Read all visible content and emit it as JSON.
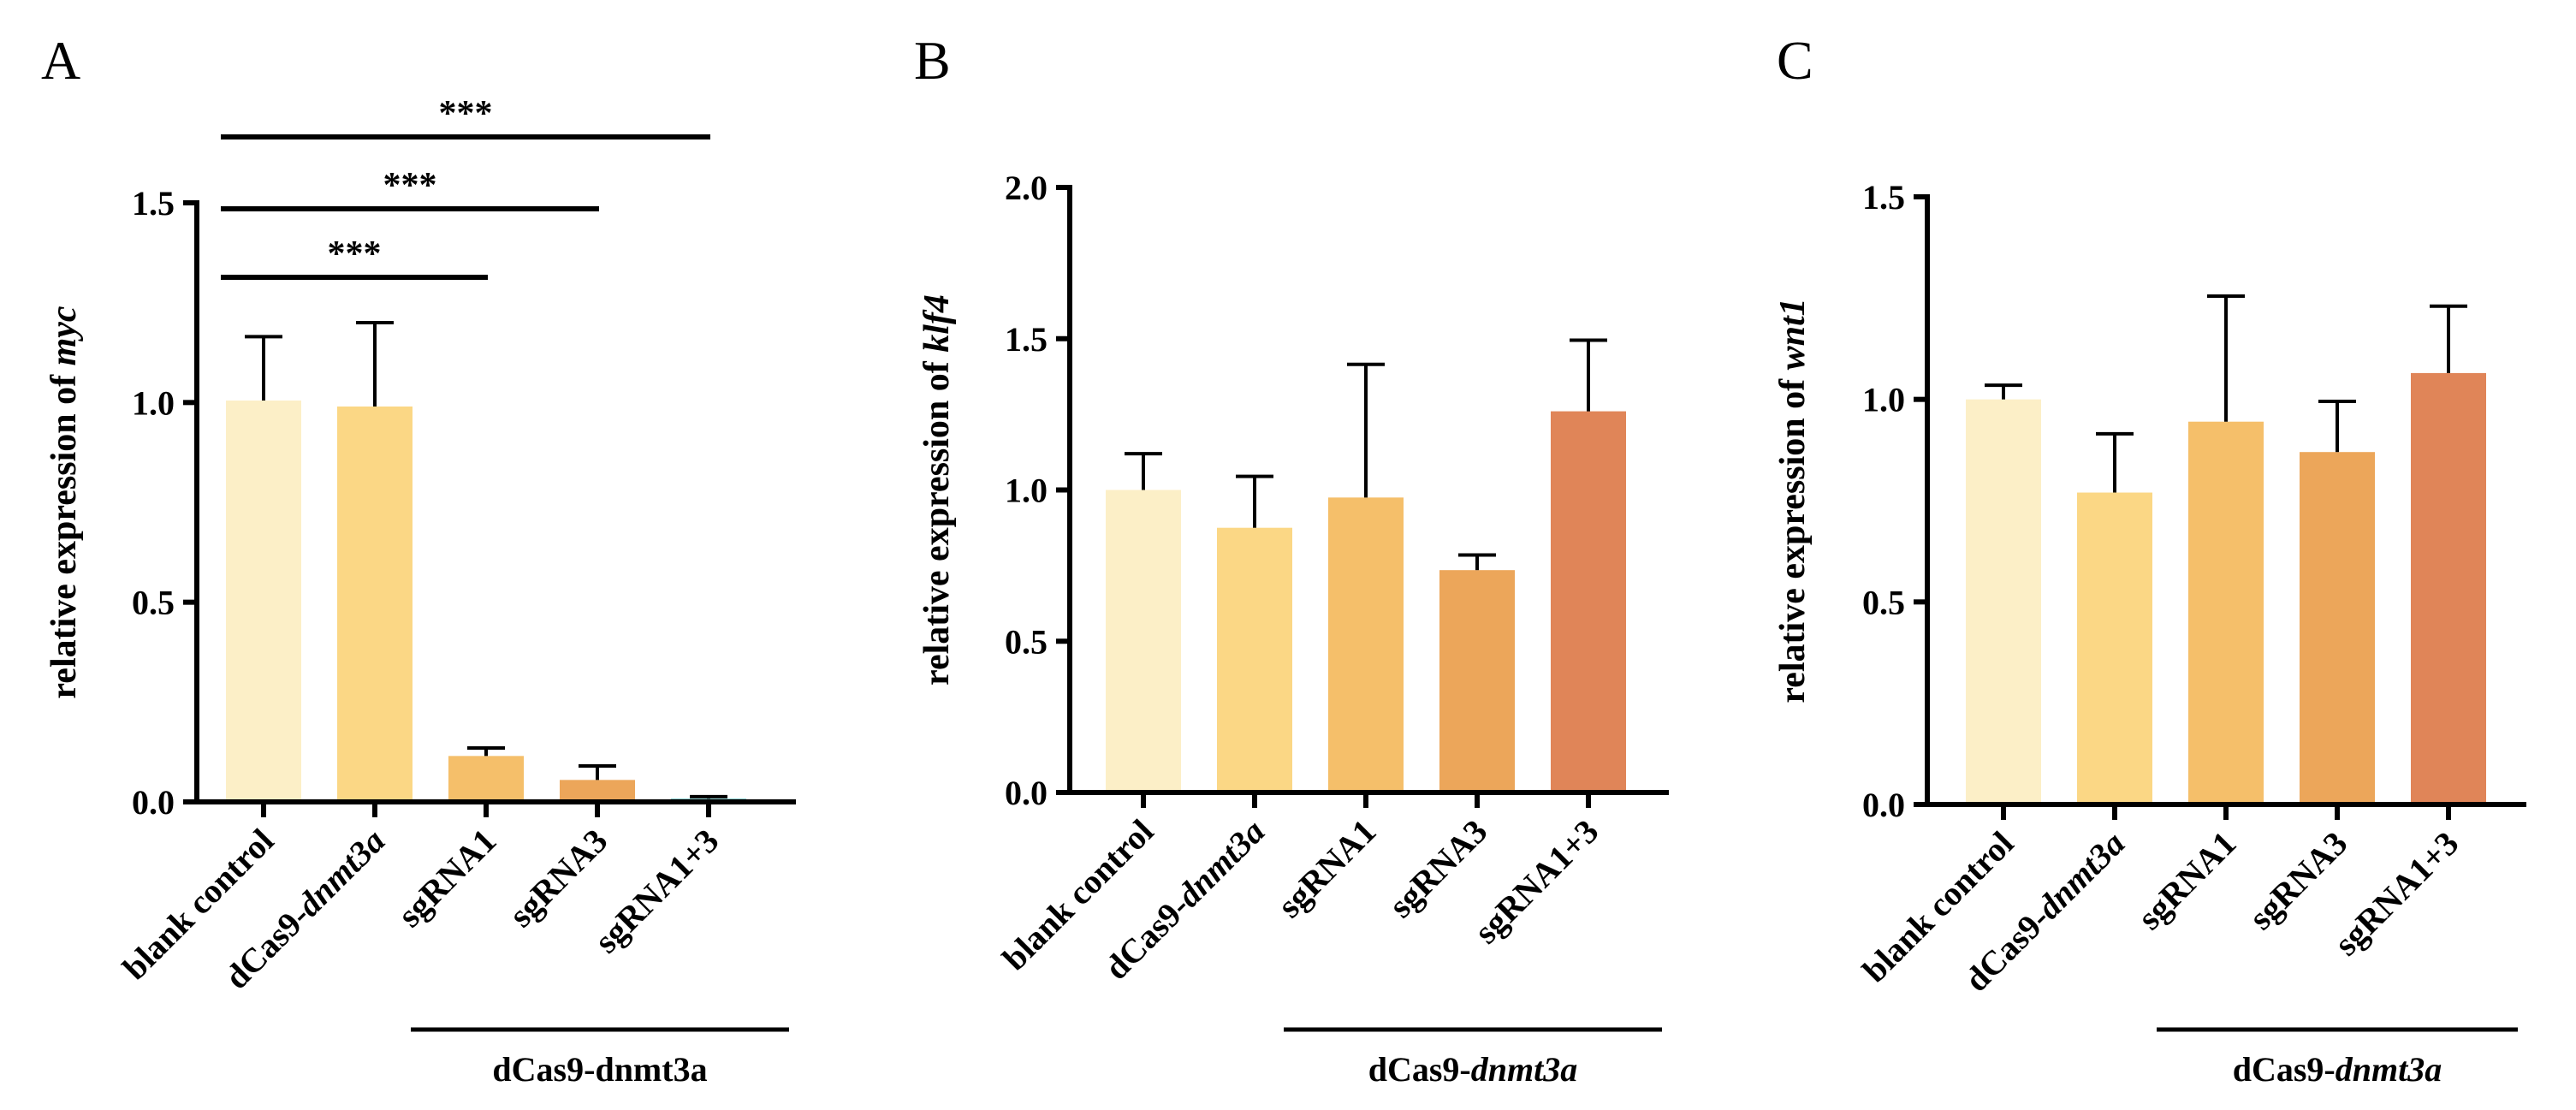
{
  "chart_data": [
    {
      "panel": "A",
      "type": "bar",
      "ylabel_prefix": "relative expression of ",
      "ylabel_gene": "myc",
      "ylim": [
        0,
        1.5
      ],
      "yticks": [
        "0.0",
        "0.5",
        "1.0",
        "1.5"
      ],
      "yticks_values": [
        0,
        0.5,
        1.0,
        1.5
      ],
      "categories": [
        {
          "pre": "blank control",
          "ital": ""
        },
        {
          "pre": "dCas9-",
          "ital": "dnmt3a"
        },
        {
          "pre": "sgRNA1",
          "ital": ""
        },
        {
          "pre": "sgRNA3",
          "ital": ""
        },
        {
          "pre": "sgRNA1+3",
          "ital": ""
        }
      ],
      "values": [
        1.005,
        0.99,
        0.115,
        0.055,
        0.008
      ],
      "errors": [
        0.16,
        0.21,
        0.02,
        0.035,
        0.005
      ],
      "colors": [
        "#FCEFC7",
        "#FBD785",
        "#F5BF6A",
        "#ECA65A",
        "#60BFBF"
      ],
      "group": {
        "pre": "dCas9-dnmt3a",
        "ital": "",
        "from": 2,
        "to": 4
      },
      "significance": [
        {
          "label": "***",
          "from": 0,
          "to": 2
        },
        {
          "label": "***",
          "from": 0,
          "to": 3
        },
        {
          "label": "***",
          "from": 0,
          "to": 4
        }
      ]
    },
    {
      "panel": "B",
      "type": "bar",
      "ylabel_prefix": "relative expression of ",
      "ylabel_gene": "klf4",
      "ylim": [
        0,
        2.0
      ],
      "yticks": [
        "0.0",
        "0.5",
        "1.0",
        "1.5",
        "2.0"
      ],
      "yticks_values": [
        0,
        0.5,
        1.0,
        1.5,
        2.0
      ],
      "categories": [
        {
          "pre": "blank control",
          "ital": ""
        },
        {
          "pre": "dCas9-",
          "ital": "dnmt3a"
        },
        {
          "pre": "sgRNA1",
          "ital": ""
        },
        {
          "pre": "sgRNA3",
          "ital": ""
        },
        {
          "pre": "sgRNA1+3",
          "ital": ""
        }
      ],
      "values": [
        1.0,
        0.875,
        0.975,
        0.735,
        1.26
      ],
      "errors": [
        0.12,
        0.17,
        0.44,
        0.05,
        0.235
      ],
      "colors": [
        "#FCEFC7",
        "#FBD785",
        "#F5BF6A",
        "#ECA65A",
        "#E08558"
      ],
      "group": {
        "pre": "dCas9-",
        "ital": "dnmt3a",
        "from": 2,
        "to": 4
      },
      "significance": []
    },
    {
      "panel": "C",
      "type": "bar",
      "ylabel_prefix": "relative expression of ",
      "ylabel_gene": "wnt1",
      "ylim": [
        0,
        1.5
      ],
      "yticks": [
        "0.0",
        "0.5",
        "1.0",
        "1.5"
      ],
      "yticks_values": [
        0,
        0.5,
        1.0,
        1.5
      ],
      "categories": [
        {
          "pre": "blank control",
          "ital": ""
        },
        {
          "pre": "dCas9-",
          "ital": "dnmt3a"
        },
        {
          "pre": "sgRNA1",
          "ital": ""
        },
        {
          "pre": "sgRNA3",
          "ital": ""
        },
        {
          "pre": "sgRNA1+3",
          "ital": ""
        }
      ],
      "values": [
        1.0,
        0.77,
        0.945,
        0.87,
        1.065
      ],
      "errors": [
        0.035,
        0.145,
        0.31,
        0.125,
        0.165
      ],
      "colors": [
        "#FCEFC7",
        "#FBD785",
        "#F5BF6A",
        "#ECA65A",
        "#E08558"
      ],
      "group": {
        "pre": "dCas9-",
        "ital": "dnmt3a",
        "from": 2,
        "to": 4
      },
      "significance": []
    }
  ]
}
